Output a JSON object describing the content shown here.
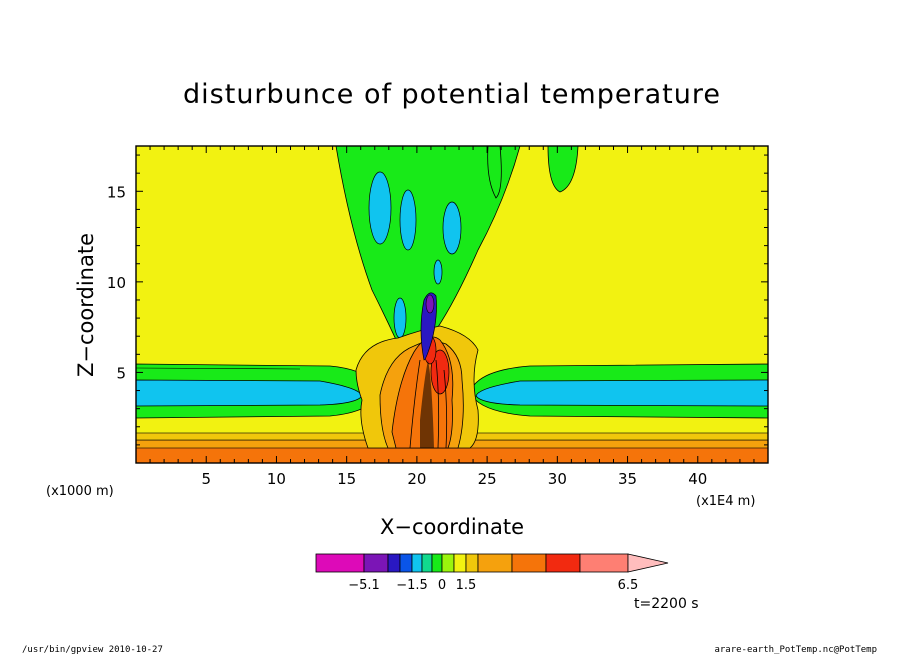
{
  "chart_data": {
    "type": "heatmap",
    "title": "disturbunce of potential temperature",
    "xlabel": "X−coordinate",
    "ylabel": "Z−coordinate",
    "x_unit_label": "(x1000 m)",
    "x_scale_label": "(x1E4 m)",
    "xlim": [
      0,
      45
    ],
    "ylim": [
      0,
      17.5
    ],
    "x_ticks": [
      5,
      10,
      15,
      20,
      25,
      30,
      35,
      40
    ],
    "y_ticks": [
      5,
      10,
      15
    ],
    "colorbar": {
      "colors": [
        "#dd0ab8",
        "#7b15b6",
        "#2a18c2",
        "#0a55e8",
        "#10c4ef",
        "#11d98e",
        "#18ea18",
        "#9bf50d",
        "#f2f211",
        "#f0c70b",
        "#f5a10d",
        "#f5740a",
        "#f22a10",
        "#fe7f73",
        "#ffbdbd"
      ],
      "tick_labels": [
        "−5.1",
        "−1.5",
        "0",
        "1.5",
        "6.5"
      ],
      "extend": "max"
    },
    "time_label": "t=2200 s"
  },
  "footer": {
    "left": "/usr/bin/gpview   2010-10-27",
    "right": "arare-earth_PotTemp.nc@PotTemp"
  }
}
